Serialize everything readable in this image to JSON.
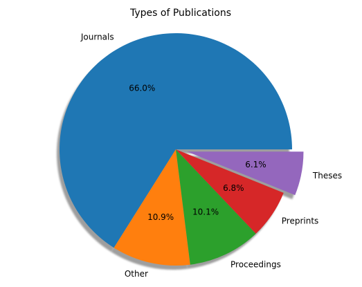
{
  "chart_data": {
    "type": "pie",
    "title": "Types of Publications",
    "categories": [
      "Journals",
      "Other",
      "Proceedings",
      "Preprints",
      "Theses"
    ],
    "values": [
      66.0,
      10.9,
      10.1,
      6.8,
      6.1
    ],
    "value_labels": [
      "66.0%",
      "10.9%",
      "10.1%",
      "6.8%",
      "6.1%"
    ],
    "colors": [
      "#1f77b4",
      "#ff7f0e",
      "#2ca02c",
      "#d62728",
      "#9467bd"
    ],
    "exploded": [
      "Theses"
    ],
    "shadow": true,
    "start_angle_deg": 0,
    "direction": "counterclockwise",
    "legend": "none"
  }
}
